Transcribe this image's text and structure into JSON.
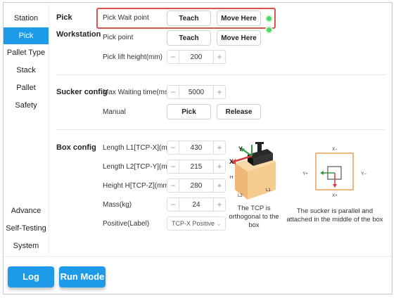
{
  "sidebar": {
    "top_items": [
      {
        "label": "Station"
      },
      {
        "label": "Pick"
      },
      {
        "label": "Pallet Type"
      },
      {
        "label": "Stack"
      },
      {
        "label": "Pallet"
      },
      {
        "label": "Safety"
      }
    ],
    "bottom_items": [
      {
        "label": "Advance"
      },
      {
        "label": "Self-Testing"
      },
      {
        "label": "System"
      }
    ]
  },
  "pick_workstation": {
    "title_line1": "Pick",
    "title_line2": "Workstation",
    "wait_point_label": "Pick Wait point",
    "pick_point_label": "Pick point",
    "lift_height_label": "Pick lift height(mm)",
    "teach_label": "Teach",
    "move_here_label": "Move Here",
    "lift_height_value": "200"
  },
  "sucker_config": {
    "title": "Sucker config",
    "max_wait_label": "Max Waiting time(ms)",
    "max_wait_value": "5000",
    "manual_label": "Manual",
    "pick_label": "Pick",
    "release_label": "Release"
  },
  "box_config": {
    "title": "Box config",
    "fields": [
      {
        "label": "Length L1[TCP-X](mm)",
        "value": "430"
      },
      {
        "label": "Length L2[TCP-Y](mm)",
        "value": "215"
      },
      {
        "label": "Height H[TCP-Z](mm)",
        "value": "280"
      },
      {
        "label": "Mass(kg)",
        "value": "24"
      }
    ],
    "positive_label": "Positive(Label)",
    "positive_value": "TCP-X Positive",
    "box_axis_labels": {
      "y": "Y",
      "x": "X",
      "h": "H",
      "l2": "L2",
      "l1": "L1"
    },
    "box_caption": "The TCP is orthogonal to the box",
    "top_axis_labels": {
      "top": "X−",
      "left": "Y+",
      "right": "Y−",
      "bottom": "X+"
    },
    "top_caption": "The sucker is parallel and attached in the middle of the box"
  },
  "stepper": {
    "minus": "−",
    "plus": "+"
  },
  "bottom": {
    "log_label": "Log",
    "run_mode_label": "Run Mode"
  },
  "colors": {
    "accent": "#1e9be8",
    "status_dot": "#4cd964",
    "highlight": "#d9534f",
    "box": "#f5c88a"
  }
}
